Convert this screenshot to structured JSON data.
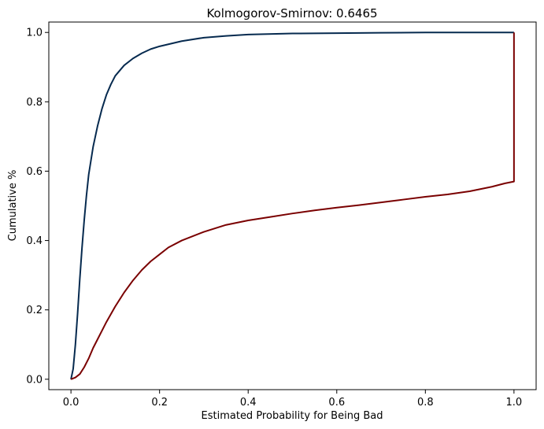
{
  "chart_data": {
    "type": "line",
    "title": "Kolmogorov-Smirnov:  0.6465",
    "xlabel": "Estimated Probability for Being Bad",
    "ylabel": "Cumulative %",
    "xlim": [
      -0.05,
      1.05
    ],
    "ylim": [
      -0.03,
      1.03
    ],
    "xticks": [
      0.0,
      0.2,
      0.4,
      0.6,
      0.8,
      1.0
    ],
    "xtick_labels": [
      "0.0",
      "0.2",
      "0.4",
      "0.6",
      "0.8",
      "1.0"
    ],
    "yticks": [
      0.0,
      0.2,
      0.4,
      0.6,
      0.8,
      1.0
    ],
    "ytick_labels": [
      "0.0",
      "0.2",
      "0.4",
      "0.6",
      "0.8",
      "1.0"
    ],
    "grid": false,
    "series": [
      {
        "color": "#062a4f",
        "x": [
          0.0,
          0.005,
          0.01,
          0.015,
          0.02,
          0.025,
          0.03,
          0.035,
          0.04,
          0.05,
          0.06,
          0.07,
          0.08,
          0.09,
          0.1,
          0.12,
          0.14,
          0.16,
          0.18,
          0.2,
          0.25,
          0.3,
          0.35,
          0.4,
          0.5,
          0.6,
          0.7,
          0.8,
          0.9,
          1.0
        ],
        "y": [
          0.0,
          0.03,
          0.1,
          0.19,
          0.29,
          0.38,
          0.46,
          0.53,
          0.59,
          0.67,
          0.73,
          0.78,
          0.82,
          0.85,
          0.875,
          0.905,
          0.925,
          0.94,
          0.952,
          0.96,
          0.975,
          0.985,
          0.99,
          0.994,
          0.997,
          0.998,
          0.999,
          1.0,
          1.0,
          1.0
        ]
      },
      {
        "color": "#7a0000",
        "x": [
          0.0,
          0.01,
          0.02,
          0.03,
          0.04,
          0.05,
          0.06,
          0.08,
          0.1,
          0.12,
          0.14,
          0.16,
          0.18,
          0.2,
          0.22,
          0.25,
          0.3,
          0.35,
          0.4,
          0.45,
          0.5,
          0.55,
          0.6,
          0.65,
          0.7,
          0.75,
          0.8,
          0.85,
          0.9,
          0.95,
          0.98,
          1.0,
          1.0
        ],
        "y": [
          0.0,
          0.005,
          0.015,
          0.035,
          0.06,
          0.09,
          0.115,
          0.165,
          0.21,
          0.25,
          0.285,
          0.315,
          0.34,
          0.36,
          0.38,
          0.4,
          0.425,
          0.445,
          0.458,
          0.468,
          0.478,
          0.487,
          0.495,
          0.502,
          0.51,
          0.518,
          0.526,
          0.533,
          0.542,
          0.555,
          0.565,
          0.57,
          1.0
        ]
      }
    ]
  }
}
